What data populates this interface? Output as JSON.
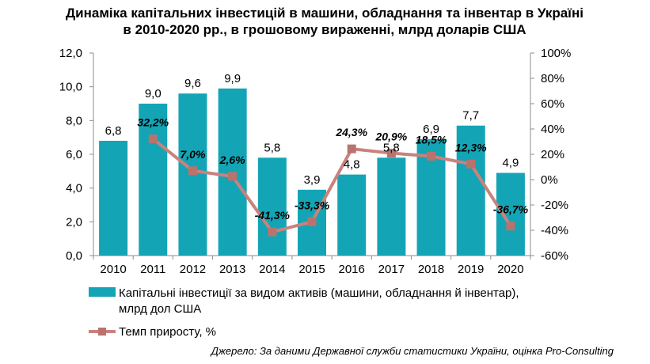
{
  "title_line1": "Динаміка капітальних інвестицій в машини, обладнання та інвентар в Україні",
  "title_line2": "в 2010-2020 рр., в грошовому вираженні, млрд доларів США",
  "source": "Джерело: За даними Державної служби статистики України, оцінка Pro-Consulting",
  "colors": {
    "bar": "#13A5B5",
    "line": "#C9827C",
    "marker": "#B9736E",
    "axis": "#8C8C8C"
  },
  "chart_data": {
    "type": "bar",
    "categories": [
      "2010",
      "2011",
      "2012",
      "2013",
      "2014",
      "2015",
      "2016",
      "2017",
      "2018",
      "2019",
      "2020"
    ],
    "series": [
      {
        "name": "Капітальні інвестиції за видом активів (машини,  обладнання  й інвентар), млрд дол США",
        "type": "bar",
        "axis": "left",
        "values": [
          6.8,
          9.0,
          9.6,
          9.9,
          5.8,
          3.9,
          4.8,
          5.8,
          6.9,
          7.7,
          4.9
        ],
        "labels": [
          "6,8",
          "9,0",
          "9,6",
          "9,9",
          "5,8",
          "3,9",
          "4,8",
          "5,8",
          "6,9",
          "7,7",
          "4,9"
        ]
      },
      {
        "name": "Темп приросту, %",
        "type": "line",
        "axis": "right",
        "values": [
          null,
          32.2,
          7.0,
          2.6,
          -41.3,
          -33.3,
          24.3,
          20.9,
          18.5,
          12.3,
          -36.7
        ],
        "labels": [
          "",
          "32,2%",
          "7,0%",
          "2,6%",
          "-41,3%",
          "-33,3%",
          "24,3%",
          "20,9%",
          "18,5%",
          "12,3%",
          "-36,7%"
        ]
      }
    ],
    "y_left": {
      "min": 0,
      "max": 12,
      "ticks": [
        "0,0",
        "2,0",
        "4,0",
        "6,0",
        "8,0",
        "10,0",
        "12,0"
      ]
    },
    "y_right": {
      "min": -60,
      "max": 100,
      "ticks": [
        "-60%",
        "-40%",
        "-20%",
        "0%",
        "20%",
        "40%",
        "60%",
        "80%",
        "100%"
      ]
    },
    "grid": false,
    "legend_position": "bottom-left"
  }
}
